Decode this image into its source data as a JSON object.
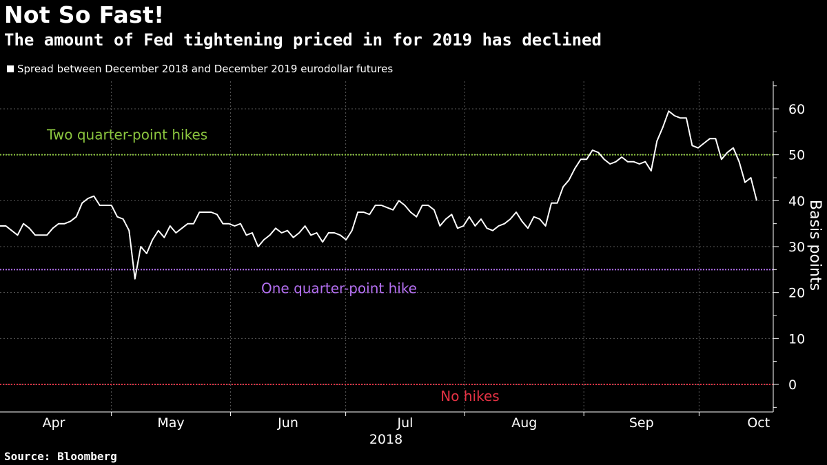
{
  "title": "Not So Fast!",
  "subtitle": "The amount of Fed tightening priced in for 2019 has declined",
  "source": "Source: Bloomberg",
  "chart_data": {
    "type": "line",
    "ylabel": "Basis points",
    "xlabel": "2018",
    "ylim": [
      -6,
      66
    ],
    "yticks": [
      0,
      10,
      20,
      30,
      40,
      50,
      60
    ],
    "y_axis_position": "right",
    "grid": true,
    "legend": "top-left",
    "months": [
      "Apr",
      "May",
      "Jun",
      "Jul",
      "Aug",
      "Sep",
      "Oct"
    ],
    "series": [
      {
        "name": "Spread between December 2018 and December 2019 eurodollar futures",
        "color": "#ffffff",
        "x_start": "2018-04-02",
        "x_end": "2018-10-16",
        "values": [
          34.5,
          34.5,
          33.5,
          32.5,
          35,
          34,
          32.5,
          32.5,
          32.5,
          34,
          35,
          35,
          35.5,
          36.5,
          39.5,
          40.5,
          41,
          39,
          39,
          39,
          36.5,
          36,
          33.5,
          23,
          30,
          28.5,
          31.5,
          33.5,
          32,
          34.5,
          33,
          34,
          35,
          35,
          37.5,
          37.5,
          37.5,
          37,
          35,
          35,
          34.5,
          35,
          32.5,
          33,
          30,
          31.5,
          32.5,
          34,
          33,
          33.5,
          32,
          33,
          34.5,
          32.5,
          33,
          31,
          33,
          33,
          32.5,
          31.5,
          33.5,
          37.5,
          37.5,
          37,
          39,
          39,
          38.5,
          38,
          40,
          39,
          37.5,
          36.5,
          39,
          39,
          38,
          34.5,
          36,
          37,
          34,
          34.5,
          36.5,
          34.5,
          36,
          34,
          33.5,
          34.5,
          35,
          36,
          37.5,
          35.5,
          34,
          36.5,
          36,
          34.5,
          39.5,
          39.5,
          43,
          44.5,
          47,
          49,
          49,
          51,
          50.5,
          49,
          48,
          48.5,
          49.5,
          48.5,
          48.5,
          48,
          48.5,
          46.5,
          53,
          56,
          59.5,
          58.5,
          58,
          58,
          52,
          51.5,
          52.5,
          53.5,
          53.5,
          49,
          50.5,
          51.5,
          48.5,
          44,
          45,
          40
        ]
      }
    ],
    "reference_lines": [
      {
        "value": 50,
        "label": "Two quarter-point hikes",
        "color": "#8cc63f"
      },
      {
        "value": 25,
        "label": "One quarter-point hike",
        "color": "#b36ff0"
      },
      {
        "value": 0,
        "label": "No hikes",
        "color": "#e63244"
      }
    ]
  }
}
